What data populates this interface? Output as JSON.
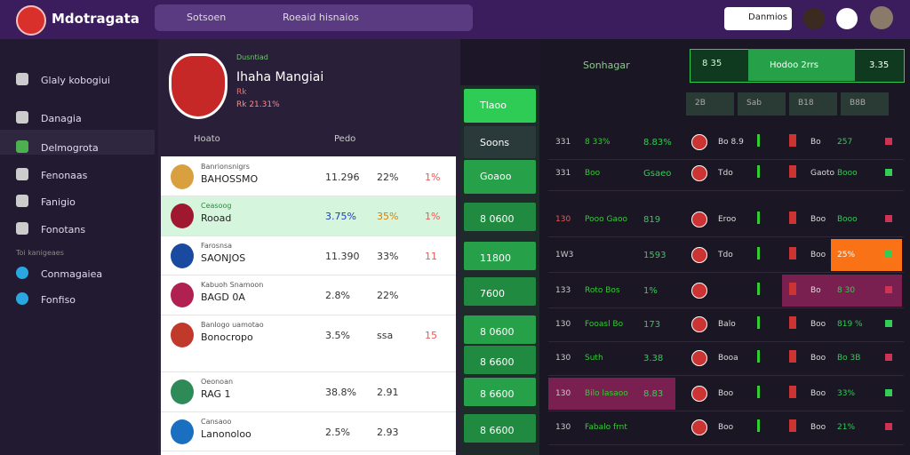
{
  "header": {
    "logo": "Mdotragata",
    "search_left": "Sotsoen",
    "search_right": "Roeaid hisnaios",
    "button": "Danmios"
  },
  "sidebar": {
    "items": [
      "Glaly kobogiui",
      "Danagia",
      "Delmogrota",
      "Fenonaas",
      "Fanigio",
      "Fonotans"
    ],
    "section": "Toi kanigeaes",
    "items2": [
      "Conmagaiea",
      "Fonfiso"
    ]
  },
  "match": {
    "kicker": "Dusntiad",
    "title": "Ihaha Mangiai",
    "sub": "Rk",
    "odds": "Rk 21.31%",
    "tabs": [
      "Hoato",
      "Pedo"
    ]
  },
  "list": {
    "rows": [
      [
        "Banrionsnigrs",
        "BAHOSSMO",
        "11.296",
        "22%",
        "1%"
      ],
      [
        "Ceasoog",
        "Rooad",
        "3.75%",
        "35%",
        "1%"
      ],
      [
        "Farosnsa",
        "SAONJOS",
        "11.390",
        "33%",
        "11"
      ],
      [
        "Kabuoh Snamoon",
        "BAGD 0A",
        "2.8%",
        "22%",
        ""
      ],
      [
        "Banlogo uamotao",
        "Bonocropo",
        "3.5%",
        "ssa",
        "15"
      ],
      [
        "Oeonoan",
        "RAG 1",
        "38.8%",
        "2.91",
        ""
      ],
      [
        "Cansaoo",
        "Lanonoloo",
        "2.5%",
        "2.93",
        ""
      ]
    ]
  },
  "bets": [
    "Tlaoo",
    "Soons",
    "Goaoo",
    "8 0600",
    "11800",
    "7600",
    "8 0600",
    "8 6600",
    "8 6600",
    "8 6600"
  ],
  "board": {
    "title": "Sonhagar",
    "top": [
      "8 35",
      "Hodoo 2rrs",
      "3.35"
    ],
    "head": [
      "2B",
      "Sab",
      "B18",
      "B8B"
    ],
    "rows": [
      [
        "331",
        "8 33%",
        "8.83%",
        "Bo 8.9",
        "Bo",
        "257"
      ],
      [
        "331",
        "Boo",
        "Gsaeo",
        "Tdo",
        "Gaoto",
        "Booo"
      ],
      [
        "130",
        "Pooo Gaoo",
        "819",
        "Eroo",
        "Boo",
        "Booo"
      ],
      [
        "1W3",
        "",
        "1593",
        "Tdo",
        "Boo",
        "25%"
      ],
      [
        "133",
        "Roto Bos",
        "1%",
        "",
        "Bo",
        "8 30"
      ],
      [
        "130",
        "Fooasl Bo",
        "173",
        "Balo",
        "Boo",
        "819 %"
      ],
      [
        "130",
        "Suth",
        "3.38",
        "Booa",
        "Boo",
        "Bo 3B"
      ],
      [
        "130",
        "Bilo lasaoo",
        "8.83",
        "Boo",
        "Boo",
        "33%"
      ],
      [
        "130",
        "Fabalo frnt",
        "",
        "Boo",
        "Boo",
        "21%"
      ]
    ]
  }
}
